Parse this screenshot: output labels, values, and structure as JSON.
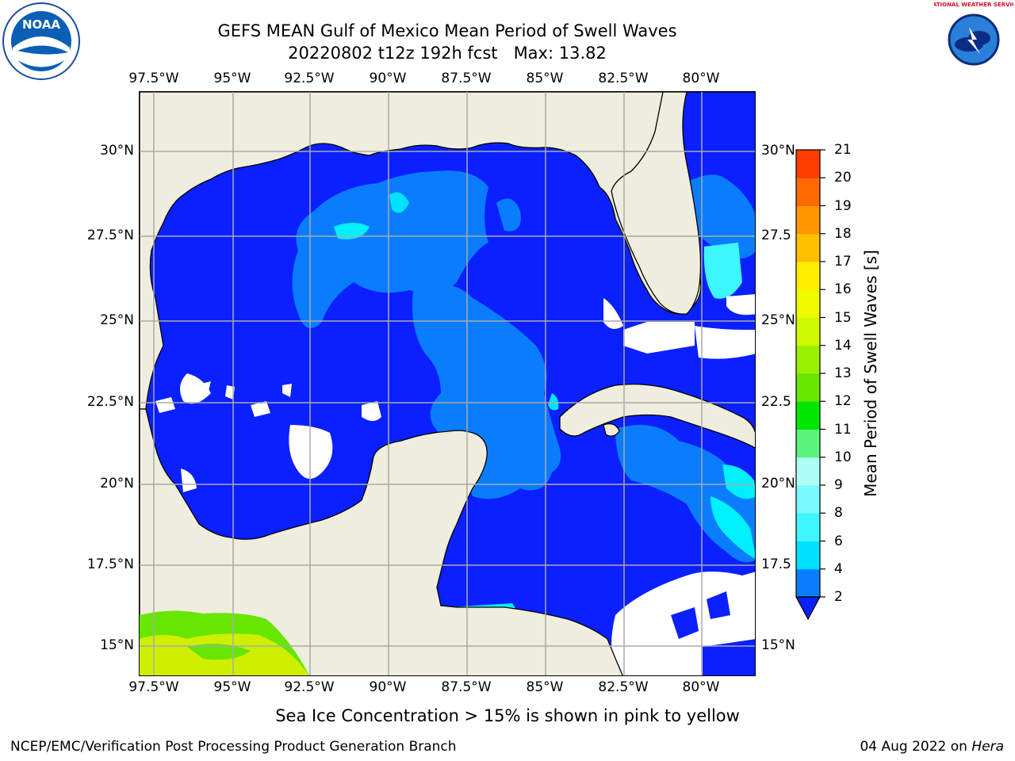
{
  "title_line1": "GEFS MEAN Gulf of Mexico Mean Period of Swell Waves",
  "title_line2": "20220802 t12z 192h fcst   Max: 13.82",
  "lon_labels": [
    "97.5°W",
    "95°W",
    "92.5°W",
    "90°W",
    "87.5°W",
    "85°W",
    "82.5°W",
    "80°W"
  ],
  "lat_labels_left": [
    "30°N",
    "27.5°N",
    "25°N",
    "22.5°N",
    "20°N",
    "17.5°N",
    "15°N"
  ],
  "lat_labels_right": [
    "30°N",
    "27.5",
    "25°N",
    "22.5",
    "20°N",
    "17.5",
    "15°N"
  ],
  "colorbar": {
    "title": "Mean Period of Swell Waves [s]",
    "ticks": [
      "2",
      "4",
      "6",
      "8",
      "9",
      "10",
      "11",
      "12",
      "13",
      "14",
      "15",
      "16",
      "17",
      "18",
      "19",
      "20",
      "21"
    ],
    "colors": [
      "#0a7dff",
      "#00e2ff",
      "#3ef6ff",
      "#79faff",
      "#adfdf8",
      "#5cf47c",
      "#00e600",
      "#66e600",
      "#99f000",
      "#cefa00",
      "#f0fa00",
      "#ffee00",
      "#ffc000",
      "#ff9600",
      "#ff6a00",
      "#ff3c00"
    ],
    "extend_color": "#0a20ff"
  },
  "colors": {
    "land": "#efeddd",
    "ocean_low": "#0a20ff",
    "ocean_mid": "#0a7dff",
    "ocean_high": "#00f0ff",
    "ocean_light": "#3ef6ff",
    "pacific_green": "#66e600",
    "pacific_yellow": "#cef000",
    "grid": "#aaaaaa"
  },
  "footer_note": "Sea Ice Concentration > 15% is shown in pink to yellow",
  "credit": "NCEP/EMC/Verification Post Processing Product Generation Branch",
  "date_text": "04 Aug 2022 on ",
  "date_host": "Hera",
  "logos": {
    "left": "NOAA",
    "right": "NATIONAL WEATHER SERVICE"
  }
}
